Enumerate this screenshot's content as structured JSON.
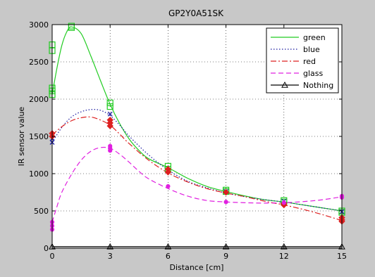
{
  "chart_data": {
    "type": "line",
    "title": "GP2Y0A51SK",
    "xlabel": "Distance [cm]",
    "ylabel": "IR sensor value",
    "xlim": [
      0,
      15
    ],
    "ylim": [
      0,
      3000
    ],
    "xticks": [
      0,
      3,
      6,
      9,
      12,
      15
    ],
    "yticks": [
      0,
      500,
      1000,
      1500,
      2000,
      2500,
      3000
    ],
    "grid": true,
    "legend_position": "top-right",
    "colors": {
      "green": "#22cc22",
      "blue": "#1a1aa0",
      "red": "#dd2020",
      "glass": "#e020e0",
      "nothing": "#000000",
      "figure_bg": "#c8c8c8",
      "axes_bg": "#ffffff"
    },
    "series": [
      {
        "name": "green",
        "style": "solid",
        "marker": "square",
        "color": "#22cc22",
        "curve": [
          [
            0,
            2060
          ],
          [
            0.25,
            2420
          ],
          [
            0.5,
            2720
          ],
          [
            0.75,
            2900
          ],
          [
            1,
            2970
          ],
          [
            1.5,
            2880
          ],
          [
            2,
            2580
          ],
          [
            2.5,
            2250
          ],
          [
            3,
            1930
          ],
          [
            3.5,
            1670
          ],
          [
            4,
            1460
          ],
          [
            4.5,
            1310
          ],
          [
            5,
            1200
          ],
          [
            6,
            1080
          ],
          [
            7,
            940
          ],
          [
            8,
            830
          ],
          [
            9,
            760
          ],
          [
            10,
            700
          ],
          [
            11,
            650
          ],
          [
            12,
            620
          ],
          [
            13,
            580
          ],
          [
            14,
            540
          ],
          [
            15,
            500
          ]
        ],
        "points": [
          [
            0,
            2060
          ],
          [
            0,
            2110
          ],
          [
            0,
            2150
          ],
          [
            0,
            2650
          ],
          [
            0,
            2730
          ],
          [
            1,
            2960
          ],
          [
            1,
            2980
          ],
          [
            3,
            1900
          ],
          [
            3,
            1950
          ],
          [
            6,
            1060
          ],
          [
            6,
            1100
          ],
          [
            9,
            760
          ],
          [
            9,
            780
          ],
          [
            12,
            620
          ],
          [
            12,
            640
          ],
          [
            15,
            480
          ],
          [
            15,
            500
          ]
        ]
      },
      {
        "name": "blue",
        "style": "dotted",
        "marker": "x",
        "color": "#1a1aa0",
        "curve": [
          [
            0,
            1420
          ],
          [
            0.5,
            1620
          ],
          [
            1,
            1760
          ],
          [
            1.5,
            1830
          ],
          [
            2,
            1860
          ],
          [
            2.5,
            1850
          ],
          [
            3,
            1780
          ],
          [
            3.5,
            1650
          ],
          [
            4,
            1500
          ],
          [
            5,
            1250
          ],
          [
            6,
            1050
          ],
          [
            7,
            900
          ],
          [
            8,
            810
          ],
          [
            9,
            740
          ],
          [
            10,
            690
          ],
          [
            11,
            650
          ],
          [
            12,
            620
          ],
          [
            13,
            580
          ],
          [
            14,
            540
          ],
          [
            15,
            500
          ]
        ],
        "points": [
          [
            0,
            1420
          ],
          [
            0,
            1470
          ],
          [
            3,
            1800
          ],
          [
            6,
            1040
          ],
          [
            9,
            760
          ],
          [
            12,
            630
          ],
          [
            15,
            490
          ]
        ]
      },
      {
        "name": "red",
        "style": "dashdot",
        "marker": "diamond",
        "color": "#dd2020",
        "curve": [
          [
            0,
            1520
          ],
          [
            0.5,
            1630
          ],
          [
            1,
            1710
          ],
          [
            1.5,
            1750
          ],
          [
            2,
            1760
          ],
          [
            2.5,
            1720
          ],
          [
            3,
            1650
          ],
          [
            3.5,
            1530
          ],
          [
            4,
            1400
          ],
          [
            5,
            1180
          ],
          [
            6,
            1010
          ],
          [
            7,
            890
          ],
          [
            8,
            800
          ],
          [
            9,
            740
          ],
          [
            10,
            690
          ],
          [
            11,
            630
          ],
          [
            12,
            580
          ],
          [
            13,
            520
          ],
          [
            14,
            450
          ],
          [
            15,
            370
          ]
        ],
        "points": [
          [
            0,
            1500
          ],
          [
            0,
            1540
          ],
          [
            3,
            1640
          ],
          [
            3,
            1680
          ],
          [
            3,
            1720
          ],
          [
            6,
            1020
          ],
          [
            6,
            1060
          ],
          [
            9,
            750
          ],
          [
            12,
            580
          ],
          [
            12,
            600
          ],
          [
            15,
            360
          ],
          [
            15,
            380
          ],
          [
            15,
            410
          ]
        ]
      },
      {
        "name": "glass",
        "style": "dashed",
        "marker": "circle",
        "color": "#e020e0",
        "curve": [
          [
            0,
            350
          ],
          [
            0.25,
            560
          ],
          [
            0.5,
            750
          ],
          [
            1,
            990
          ],
          [
            1.5,
            1180
          ],
          [
            2,
            1300
          ],
          [
            2.5,
            1350
          ],
          [
            3,
            1340
          ],
          [
            3.5,
            1260
          ],
          [
            4,
            1150
          ],
          [
            4.5,
            1030
          ],
          [
            5,
            930
          ],
          [
            6,
            800
          ],
          [
            7,
            700
          ],
          [
            8,
            640
          ],
          [
            9,
            620
          ],
          [
            10,
            610
          ],
          [
            11,
            605
          ],
          [
            12,
            610
          ],
          [
            13,
            625
          ],
          [
            14,
            650
          ],
          [
            15,
            690
          ]
        ],
        "points": [
          [
            0,
            250
          ],
          [
            0,
            300
          ],
          [
            0,
            350
          ],
          [
            3,
            1310
          ],
          [
            3,
            1340
          ],
          [
            3,
            1370
          ],
          [
            6,
            830
          ],
          [
            9,
            620
          ],
          [
            12,
            610
          ],
          [
            15,
            680
          ],
          [
            15,
            700
          ]
        ]
      },
      {
        "name": "Nothing",
        "style": "solid",
        "marker": "triangle",
        "color": "#000000",
        "curve": [
          [
            0,
            20
          ],
          [
            15,
            20
          ]
        ],
        "points": [
          [
            0,
            20
          ],
          [
            3,
            20
          ],
          [
            6,
            20
          ],
          [
            9,
            20
          ],
          [
            12,
            20
          ],
          [
            15,
            20
          ]
        ]
      }
    ]
  }
}
